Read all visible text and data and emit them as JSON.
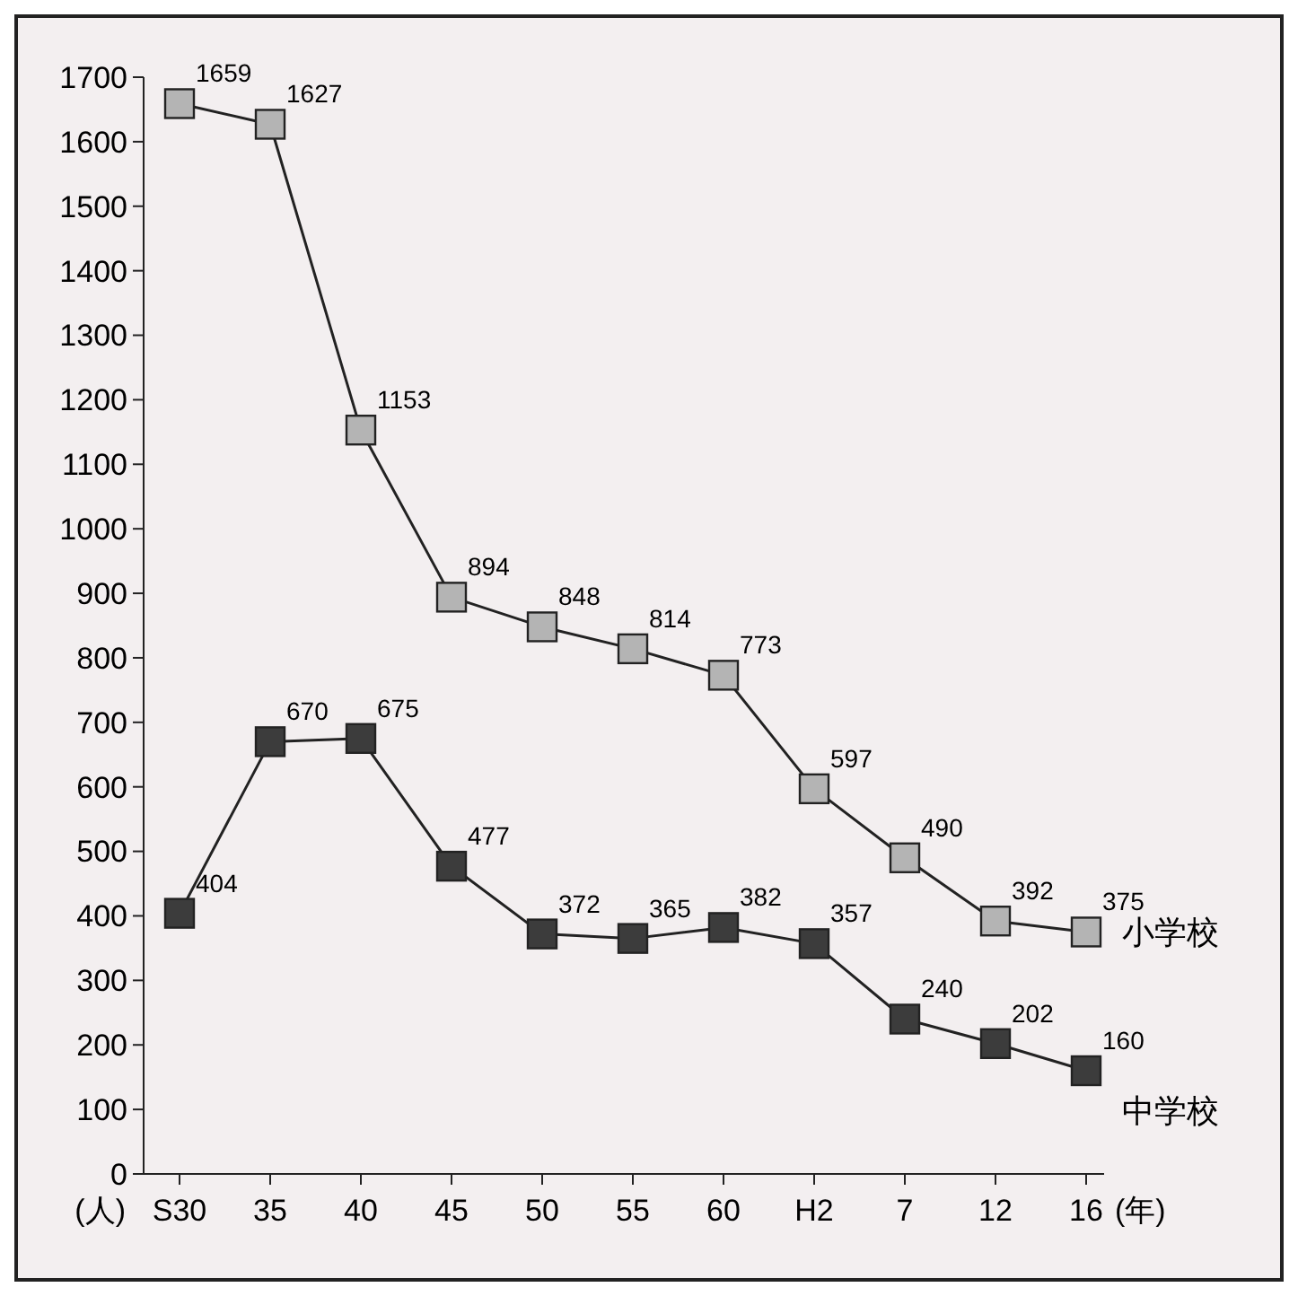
{
  "chart_data": {
    "type": "line",
    "categories": [
      "S30",
      "35",
      "40",
      "45",
      "50",
      "55",
      "60",
      "H2",
      "7",
      "12",
      "16"
    ],
    "ylabel": "(人)",
    "xlabel": "(年)",
    "ylim": [
      0,
      1700
    ],
    "yticks": [
      0,
      100,
      200,
      300,
      400,
      500,
      600,
      700,
      800,
      900,
      1000,
      1100,
      1200,
      1300,
      1400,
      1500,
      1600,
      1700
    ],
    "grid": false,
    "marker": "square",
    "data_labels": true,
    "series": [
      {
        "name": "小学校",
        "color": "#b4b4b4",
        "values": [
          1659,
          1627,
          1153,
          894,
          848,
          814,
          773,
          597,
          490,
          392,
          375
        ]
      },
      {
        "name": "中学校",
        "color": "#3c3c3c",
        "values": [
          404,
          670,
          675,
          477,
          372,
          365,
          382,
          357,
          240,
          202,
          160
        ]
      }
    ]
  }
}
